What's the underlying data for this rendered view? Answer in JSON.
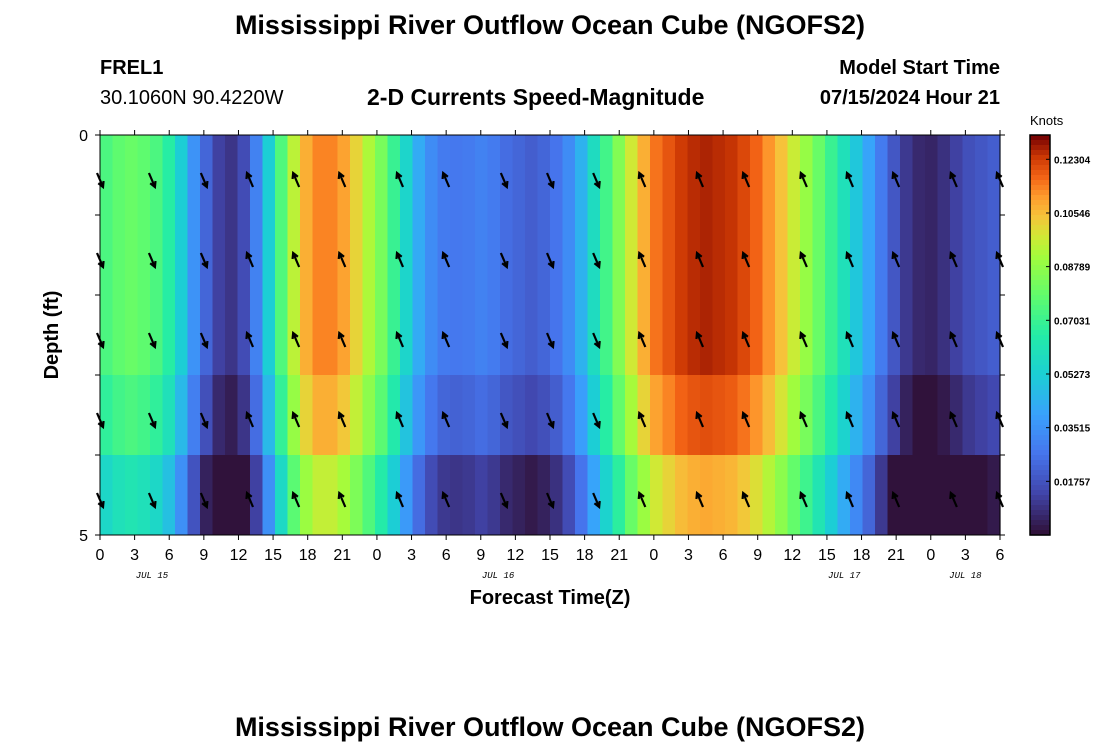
{
  "header": {
    "title": "Mississippi River Outflow Ocean Cube (NGOFS2)",
    "station_id": "FREL1",
    "station_coords": "30.1060N  90.4220W",
    "subtitle": "2-D Currents Speed-Magnitude",
    "model_start_label": "Model Start Time",
    "model_start_value": "07/15/2024 Hour 21"
  },
  "footer": {
    "title": "Mississippi River Outflow Ocean Cube (NGOFS2)"
  },
  "chart_data": {
    "type": "heatmap",
    "xlabel": "Forecast Time(Z)",
    "ylabel": "Depth (ft)",
    "ylim": [
      0,
      5
    ],
    "y_tick_labels": [
      "0",
      "5"
    ],
    "x_tick_labels": [
      "0",
      "3",
      "6",
      "9",
      "12",
      "15",
      "18",
      "21",
      "0",
      "3",
      "6",
      "9",
      "12",
      "15",
      "18",
      "21",
      "0",
      "3",
      "6",
      "9",
      "12",
      "15",
      "18",
      "21",
      "0",
      "3",
      "6"
    ],
    "x_date_labels": [
      "JUL 15",
      "JUL 16",
      "JUL 17",
      "JUL 18"
    ],
    "colorbar": {
      "unit": "Knots",
      "range": [
        0,
        0.131
      ],
      "tick_labels": [
        "0.12304",
        "0.10546",
        "0.08789",
        "0.07031",
        "0.05273",
        "0.03515",
        "0.01757"
      ],
      "tick_values": [
        0.12304,
        0.10546,
        0.08789,
        0.07031,
        0.05273,
        0.03515,
        0.01757
      ],
      "colormap": "turbo"
    },
    "layers": [
      0,
      1,
      2,
      3,
      4
    ],
    "time_hours_start": 0,
    "time_hours_end": 78,
    "speed_knots_by_time_surface": [
      0.074,
      0.078,
      0.08,
      0.078,
      0.074,
      0.066,
      0.052,
      0.035,
      0.022,
      0.012,
      0.009,
      0.015,
      0.03,
      0.052,
      0.075,
      0.095,
      0.108,
      0.114,
      0.114,
      0.11,
      0.102,
      0.093,
      0.083,
      0.07,
      0.055,
      0.042,
      0.033,
      0.028,
      0.027,
      0.028,
      0.03,
      0.028,
      0.024,
      0.022,
      0.02,
      0.022,
      0.026,
      0.033,
      0.044,
      0.058,
      0.072,
      0.085,
      0.098,
      0.108,
      0.116,
      0.12,
      0.124,
      0.126,
      0.127,
      0.126,
      0.125,
      0.122,
      0.118,
      0.112,
      0.105,
      0.097,
      0.089,
      0.08,
      0.07,
      0.06,
      0.05,
      0.04,
      0.028,
      0.018,
      0.01,
      0.006,
      0.005,
      0.008,
      0.012,
      0.016,
      0.018,
      0.02
    ],
    "layer_offsets_knots": [
      0.0,
      0.0,
      0.0,
      -0.006,
      -0.018
    ],
    "arrow_times_hours": [
      0,
      4.5,
      9,
      13,
      17,
      21,
      26,
      30,
      35,
      39,
      43,
      47,
      52,
      56,
      61,
      65,
      69,
      74,
      78
    ],
    "arrow_direction": "down-right for hours 0-9 and 35-43; up-left for hours 13-30 and 47-78"
  }
}
